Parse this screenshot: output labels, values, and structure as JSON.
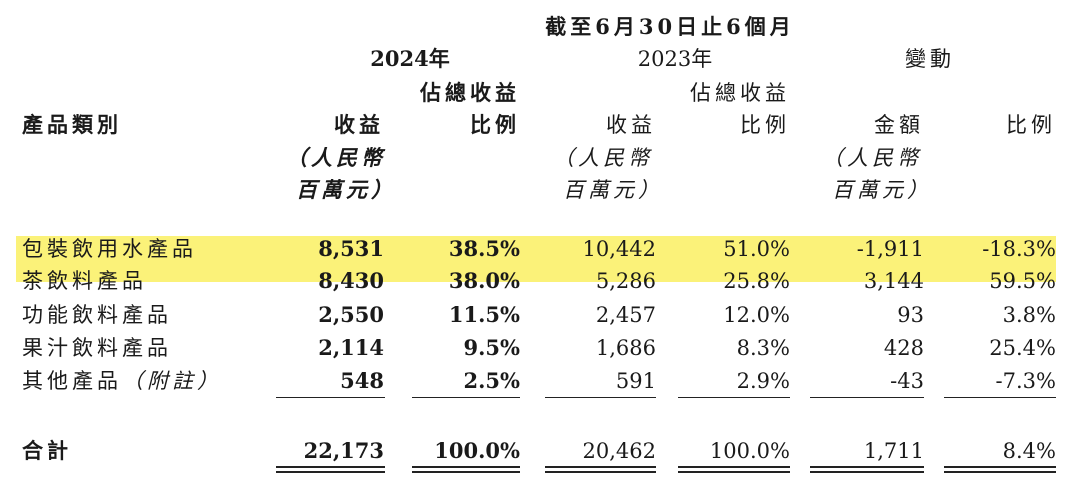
{
  "header": {
    "period": "截至6月30日止6個月",
    "year_2024": "2024年",
    "year_2023": "2023年",
    "change": "變動",
    "category_label": "產品類別",
    "pct_of_revenue_line1": "佔總收益",
    "revenue": "收益",
    "ratio": "比例",
    "amount": "金額",
    "unit_line1": "（人民幣",
    "unit_line2": "百萬元）"
  },
  "highlight_color": "#fbf279",
  "rows": [
    {
      "category": "包裝飲用水產品",
      "rev_2024": "8,531",
      "pct_2024": "38.5%",
      "rev_2023": "10,442",
      "pct_2023": "51.0%",
      "chg_amount": "-1,911",
      "chg_pct": "-18.3%",
      "highlighted": true
    },
    {
      "category": "茶飲料產品",
      "rev_2024": "8,430",
      "pct_2024": "38.0%",
      "rev_2023": "5,286",
      "pct_2023": "25.8%",
      "chg_amount": "3,144",
      "chg_pct": "59.5%",
      "highlighted": true
    },
    {
      "category": "功能飲料產品",
      "rev_2024": "2,550",
      "pct_2024": "11.5%",
      "rev_2023": "2,457",
      "pct_2023": "12.0%",
      "chg_amount": "93",
      "chg_pct": "3.8%",
      "highlighted": false
    },
    {
      "category": "果汁飲料產品",
      "rev_2024": "2,114",
      "pct_2024": "9.5%",
      "rev_2023": "1,686",
      "pct_2023": "8.3%",
      "chg_amount": "428",
      "chg_pct": "25.4%",
      "highlighted": false
    },
    {
      "category": "其他產品",
      "category_note": "（附註）",
      "rev_2024": "548",
      "pct_2024": "2.5%",
      "rev_2023": "591",
      "pct_2023": "2.9%",
      "chg_amount": "-43",
      "chg_pct": "-7.3%",
      "highlighted": false
    }
  ],
  "total": {
    "label": "合計",
    "rev_2024": "22,173",
    "pct_2024": "100.0%",
    "rev_2023": "20,462",
    "pct_2023": "100.0%",
    "chg_amount": "1,711",
    "chg_pct": "8.4%"
  }
}
